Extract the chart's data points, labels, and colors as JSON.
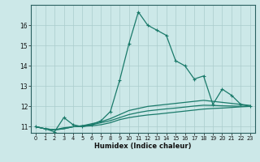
{
  "xlabel": "Humidex (Indice chaleur)",
  "bg_color": "#cce8e8",
  "line_color": "#1a7a6a",
  "grid_color": "#aacccc",
  "xlim": [
    -0.5,
    23.5
  ],
  "ylim": [
    10.7,
    17.0
  ],
  "yticks": [
    11,
    12,
    13,
    14,
    15,
    16
  ],
  "xticks": [
    0,
    1,
    2,
    3,
    4,
    5,
    6,
    7,
    8,
    9,
    10,
    11,
    12,
    13,
    14,
    15,
    16,
    17,
    18,
    19,
    20,
    21,
    22,
    23
  ],
  "x_main": [
    0,
    1,
    2,
    3,
    4,
    5,
    6,
    7,
    8,
    9,
    10,
    11,
    12,
    13,
    14,
    15,
    16,
    17,
    18,
    19,
    20,
    21,
    22,
    23
  ],
  "y_main": [
    11.0,
    10.9,
    10.75,
    11.45,
    11.1,
    11.0,
    11.1,
    11.3,
    11.75,
    13.3,
    15.1,
    16.65,
    16.0,
    15.75,
    15.5,
    14.25,
    14.0,
    13.35,
    13.5,
    12.1,
    12.85,
    12.55,
    12.1,
    12.0
  ],
  "y_flat1": [
    11.0,
    10.9,
    10.85,
    10.95,
    11.0,
    11.05,
    11.15,
    11.25,
    11.4,
    11.6,
    11.8,
    11.9,
    12.0,
    12.05,
    12.1,
    12.15,
    12.2,
    12.25,
    12.3,
    12.25,
    12.2,
    12.15,
    12.1,
    12.05
  ],
  "y_flat2": [
    11.0,
    10.9,
    10.85,
    10.9,
    11.0,
    11.05,
    11.1,
    11.2,
    11.3,
    11.45,
    11.6,
    11.7,
    11.78,
    11.83,
    11.88,
    11.92,
    11.97,
    12.02,
    12.06,
    12.05,
    12.03,
    12.02,
    12.01,
    12.0
  ],
  "y_flat3": [
    11.0,
    10.9,
    10.85,
    10.9,
    11.0,
    11.02,
    11.05,
    11.1,
    11.2,
    11.35,
    11.45,
    11.52,
    11.58,
    11.62,
    11.67,
    11.72,
    11.77,
    11.82,
    11.87,
    11.9,
    11.92,
    11.95,
    11.98,
    12.0
  ]
}
